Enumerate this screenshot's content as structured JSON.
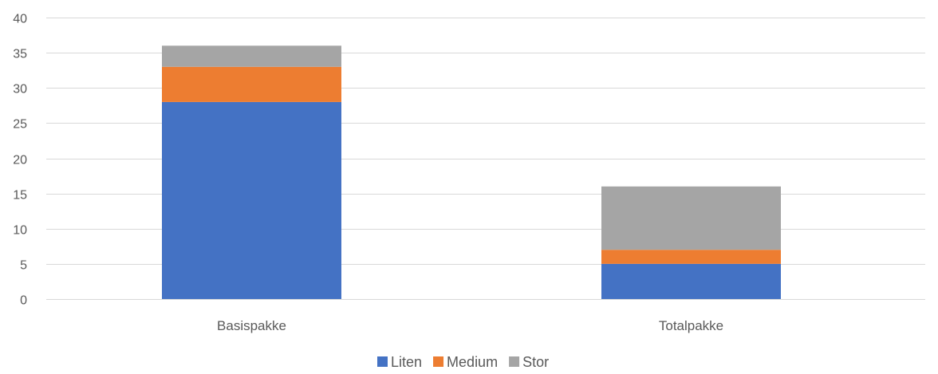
{
  "chart_data": {
    "type": "bar",
    "stacked": true,
    "categories": [
      "Basispakke",
      "Totalpakke"
    ],
    "series": [
      {
        "name": "Liten",
        "values": [
          28,
          5
        ],
        "color": "#4472c4"
      },
      {
        "name": "Medium",
        "values": [
          5,
          2
        ],
        "color": "#ed7d31"
      },
      {
        "name": "Stor",
        "values": [
          3,
          9
        ],
        "color": "#a5a5a5"
      }
    ],
    "title": "",
    "xlabel": "",
    "ylabel": "",
    "ylim": [
      0,
      40
    ],
    "yticks": [
      0,
      5,
      10,
      15,
      20,
      25,
      30,
      35,
      40
    ],
    "grid": true,
    "legend_position": "bottom"
  }
}
